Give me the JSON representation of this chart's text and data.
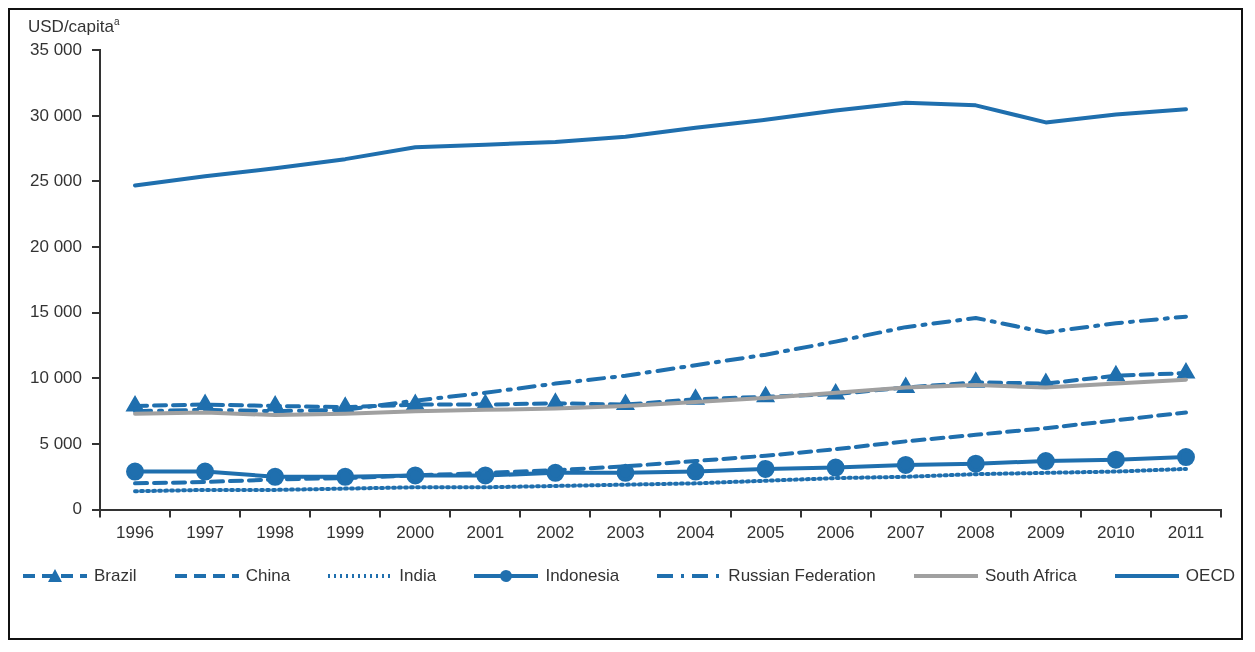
{
  "chart_data": {
    "type": "line",
    "ylabel": "USD/capita$^{a}$",
    "categories": [
      "1996",
      "1997",
      "1998",
      "1999",
      "2000",
      "2001",
      "2002",
      "2003",
      "2004",
      "2005",
      "2006",
      "2007",
      "2008",
      "2009",
      "2010",
      "2011"
    ],
    "ylim": [
      0,
      35000
    ],
    "yticks": [
      {
        "value": 0,
        "label": "0"
      },
      {
        "value": 5000,
        "label": "5 000"
      },
      {
        "value": 10000,
        "label": "10 000"
      },
      {
        "value": 15000,
        "label": "15 000"
      },
      {
        "value": 20000,
        "label": "20 000"
      },
      {
        "value": 25000,
        "label": "25 000"
      },
      {
        "value": 30000,
        "label": "30 000"
      },
      {
        "value": 35000,
        "label": "35 000"
      }
    ],
    "grid": false,
    "legend": "bottom",
    "series": [
      {
        "name": "Brazil",
        "color": "#1f6fae",
        "line_style": "dashed",
        "marker": "triangle",
        "values": [
          7900,
          8000,
          7900,
          7800,
          8000,
          8000,
          8100,
          8000,
          8400,
          8600,
          8800,
          9300,
          9700,
          9600,
          10200,
          10400
        ]
      },
      {
        "name": "China",
        "color": "#1f6fae",
        "line_style": "dashed",
        "marker": "none",
        "values": [
          2000,
          2100,
          2300,
          2400,
          2600,
          2800,
          3000,
          3300,
          3700,
          4100,
          4600,
          5200,
          5700,
          6200,
          6800,
          7400
        ]
      },
      {
        "name": "India",
        "color": "#1f6fae",
        "line_style": "dotted",
        "marker": "none",
        "values": [
          1400,
          1500,
          1500,
          1600,
          1700,
          1700,
          1800,
          1900,
          2000,
          2200,
          2400,
          2500,
          2700,
          2800,
          2900,
          3100
        ]
      },
      {
        "name": "Indonesia",
        "color": "#1f6fae",
        "line_style": "solid",
        "marker": "circle",
        "values": [
          2900,
          2900,
          2500,
          2500,
          2600,
          2600,
          2800,
          2800,
          2900,
          3100,
          3200,
          3400,
          3500,
          3700,
          3800,
          4000
        ]
      },
      {
        "name": "Russian Federation",
        "color": "#1f6fae",
        "line_style": "dashdot",
        "marker": "none",
        "values": [
          7500,
          7600,
          7500,
          7600,
          8300,
          8900,
          9600,
          10200,
          11000,
          11800,
          12800,
          13900,
          14600,
          13500,
          14200,
          14700
        ]
      },
      {
        "name": "South Africa",
        "color": "#a0a0a0",
        "line_style": "solid",
        "marker": "none",
        "values": [
          7300,
          7400,
          7200,
          7300,
          7500,
          7600,
          7700,
          7900,
          8200,
          8500,
          8900,
          9300,
          9500,
          9300,
          9600,
          9900
        ]
      },
      {
        "name": "OECD",
        "color": "#1f6fae",
        "line_style": "solid",
        "marker": "none",
        "values": [
          24700,
          25400,
          26000,
          26700,
          27600,
          27800,
          28000,
          28400,
          29100,
          29700,
          30400,
          31000,
          30800,
          29500,
          30100,
          30500
        ]
      }
    ]
  }
}
